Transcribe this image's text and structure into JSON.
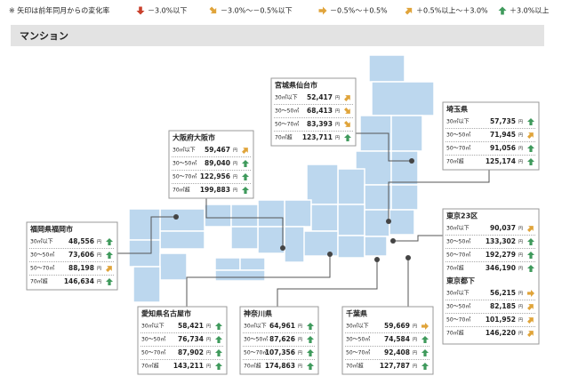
{
  "legend": {
    "note": "※ 矢印は前年同月からの変化率",
    "items": [
      {
        "label": "－3.0%以下",
        "trend": "down"
      },
      {
        "label": "－3.0%～－0.5%以下",
        "trend": "down-right"
      },
      {
        "label": "－0.5%～＋0.5%",
        "trend": "right"
      },
      {
        "label": "＋0.5%以上～＋3.0%",
        "trend": "up-right"
      },
      {
        "label": "＋3.0%以上",
        "trend": "up"
      }
    ]
  },
  "section_title": "マンション",
  "unit": "円",
  "regions": [
    {
      "name": "宮城県仙台市",
      "rows": [
        {
          "size": "30㎡以下",
          "price": "52,417",
          "trend": "up-right"
        },
        {
          "size": "30～50㎡",
          "price": "68,413",
          "trend": "down-right"
        },
        {
          "size": "50～70㎡",
          "price": "83,393",
          "trend": "down-right"
        },
        {
          "size": "70㎡超",
          "price": "123,711",
          "trend": "up"
        }
      ]
    },
    {
      "name": "埼玉県",
      "rows": [
        {
          "size": "30㎡以下",
          "price": "57,735",
          "trend": "up"
        },
        {
          "size": "30～50㎡",
          "price": "71,945",
          "trend": "up-right"
        },
        {
          "size": "50～70㎡",
          "price": "91,056",
          "trend": "up"
        },
        {
          "size": "70㎡超",
          "price": "125,174",
          "trend": "up"
        }
      ]
    },
    {
      "name": "大阪府大阪市",
      "rows": [
        {
          "size": "30㎡以下",
          "price": "59,467",
          "trend": "up-right"
        },
        {
          "size": "30～50㎡",
          "price": "89,040",
          "trend": "up"
        },
        {
          "size": "50～70㎡",
          "price": "122,956",
          "trend": "up"
        },
        {
          "size": "70㎡超",
          "price": "199,883",
          "trend": "up"
        }
      ]
    },
    {
      "name": "東京23区",
      "rows": [
        {
          "size": "30㎡以下",
          "price": "90,037",
          "trend": "up-right"
        },
        {
          "size": "30～50㎡",
          "price": "133,302",
          "trend": "up"
        },
        {
          "size": "50～70㎡",
          "price": "192,279",
          "trend": "up"
        },
        {
          "size": "70㎡超",
          "price": "346,190",
          "trend": "up"
        }
      ]
    },
    {
      "name": "東京都下",
      "rows": [
        {
          "size": "30㎡以下",
          "price": "56,215",
          "trend": "right"
        },
        {
          "size": "30～50㎡",
          "price": "82,185",
          "trend": "up-right"
        },
        {
          "size": "50～70㎡",
          "price": "101,952",
          "trend": "up-right"
        },
        {
          "size": "70㎡超",
          "price": "146,220",
          "trend": "up-right"
        }
      ]
    },
    {
      "name": "福岡県福岡市",
      "rows": [
        {
          "size": "30㎡以下",
          "price": "48,556",
          "trend": "up"
        },
        {
          "size": "30～50㎡",
          "price": "73,606",
          "trend": "up"
        },
        {
          "size": "50～70㎡",
          "price": "88,198",
          "trend": "up-right"
        },
        {
          "size": "70㎡超",
          "price": "146,634",
          "trend": "up"
        }
      ]
    },
    {
      "name": "愛知県名古屋市",
      "rows": [
        {
          "size": "30㎡以下",
          "price": "58,421",
          "trend": "up"
        },
        {
          "size": "30～50㎡",
          "price": "76,734",
          "trend": "up"
        },
        {
          "size": "50～70㎡",
          "price": "87,902",
          "trend": "up"
        },
        {
          "size": "70㎡超",
          "price": "143,211",
          "trend": "up"
        }
      ]
    },
    {
      "name": "神奈川県",
      "rows": [
        {
          "size": "30㎡以下",
          "price": "64,961",
          "trend": "up"
        },
        {
          "size": "30～50㎡",
          "price": "87,626",
          "trend": "up"
        },
        {
          "size": "50～70㎡",
          "price": "107,356",
          "trend": "up"
        },
        {
          "size": "70㎡超",
          "price": "174,863",
          "trend": "up"
        }
      ]
    },
    {
      "name": "千葉県",
      "rows": [
        {
          "size": "30㎡以下",
          "price": "59,669",
          "trend": "right"
        },
        {
          "size": "30～50㎡",
          "price": "74,584",
          "trend": "up"
        },
        {
          "size": "50～70㎡",
          "price": "92,408",
          "trend": "up"
        },
        {
          "size": "70㎡超",
          "price": "127,787",
          "trend": "up"
        }
      ]
    }
  ]
}
